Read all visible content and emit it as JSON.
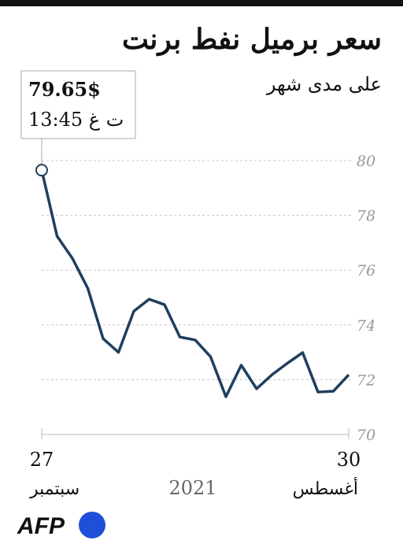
{
  "chart_data": {
    "type": "line",
    "title": "سعر برميل نفط برنت",
    "subtitle": "على مدى شهر",
    "categories": [
      "30",
      null,
      null,
      null,
      null,
      null,
      null,
      null,
      null,
      null,
      null,
      null,
      null,
      null,
      null,
      null,
      null,
      null,
      null,
      null,
      "27"
    ],
    "month_labels": {
      "first": "أغسطس",
      "last": "سبتمبر"
    },
    "year_label": "2021",
    "x_reversed": true,
    "series": [
      {
        "name": "برنت",
        "color": "#1f3f5e",
        "values": [
          72.18,
          71.58,
          71.55,
          72.99,
          72.6,
          72.18,
          71.67,
          72.53,
          71.38,
          72.84,
          73.45,
          73.56,
          74.74,
          74.94,
          74.5,
          73.0,
          73.5,
          75.34,
          76.43,
          77.24,
          79.65
        ],
        "value_labels": [
          null,
          null,
          null,
          null,
          null,
          null,
          null,
          null,
          null,
          null,
          null,
          null,
          null,
          null,
          null,
          null,
          null,
          null,
          null,
          null,
          "79.65$"
        ]
      }
    ],
    "callout_time": "13:45 ت غ",
    "ylim": [
      70,
      80
    ],
    "yticks": [
      70,
      72,
      74,
      76,
      78,
      80
    ],
    "grid": true,
    "logo": "AFP"
  }
}
